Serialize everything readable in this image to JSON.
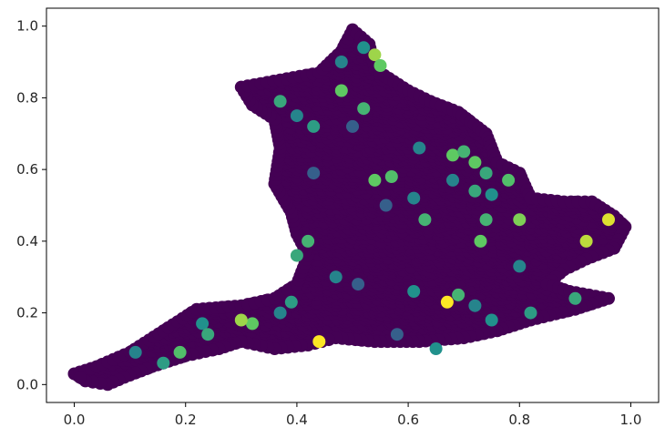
{
  "chart_data": {
    "type": "scatter",
    "title": "",
    "xlabel": "",
    "ylabel": "",
    "xlim": [
      -0.05,
      1.05
    ],
    "ylim": [
      -0.05,
      1.05
    ],
    "x_ticks": [
      "0.0",
      "0.2",
      "0.4",
      "0.6",
      "0.8",
      "1.0"
    ],
    "y_ticks": [
      "0.0",
      "0.2",
      "0.4",
      "0.6",
      "0.8",
      "1.0"
    ],
    "grid": false,
    "legend": "none",
    "colormap": "viridis",
    "base_color": "#440154",
    "accent_colors": [
      "#3b528b",
      "#21918c",
      "#5ec962",
      "#b5de2b",
      "#fde725"
    ],
    "region_outline": [
      [
        0.0,
        0.03
      ],
      [
        0.04,
        0.05
      ],
      [
        0.1,
        0.09
      ],
      [
        0.16,
        0.15
      ],
      [
        0.22,
        0.21
      ],
      [
        0.3,
        0.22
      ],
      [
        0.36,
        0.24
      ],
      [
        0.4,
        0.28
      ],
      [
        0.42,
        0.36
      ],
      [
        0.4,
        0.42
      ],
      [
        0.39,
        0.48
      ],
      [
        0.36,
        0.56
      ],
      [
        0.37,
        0.66
      ],
      [
        0.36,
        0.74
      ],
      [
        0.32,
        0.78
      ],
      [
        0.3,
        0.83
      ],
      [
        0.37,
        0.85
      ],
      [
        0.44,
        0.87
      ],
      [
        0.48,
        0.93
      ],
      [
        0.5,
        0.99
      ],
      [
        0.53,
        0.95
      ],
      [
        0.54,
        0.88
      ],
      [
        0.6,
        0.82
      ],
      [
        0.64,
        0.79
      ],
      [
        0.69,
        0.76
      ],
      [
        0.74,
        0.7
      ],
      [
        0.76,
        0.62
      ],
      [
        0.8,
        0.59
      ],
      [
        0.82,
        0.52
      ],
      [
        0.88,
        0.51
      ],
      [
        0.93,
        0.51
      ],
      [
        0.97,
        0.47
      ],
      [
        0.99,
        0.44
      ],
      [
        0.97,
        0.38
      ],
      [
        0.92,
        0.35
      ],
      [
        0.88,
        0.32
      ],
      [
        0.85,
        0.28
      ],
      [
        0.89,
        0.26
      ],
      [
        0.96,
        0.24
      ],
      [
        0.9,
        0.21
      ],
      [
        0.82,
        0.18
      ],
      [
        0.76,
        0.15
      ],
      [
        0.7,
        0.13
      ],
      [
        0.62,
        0.12
      ],
      [
        0.54,
        0.12
      ],
      [
        0.47,
        0.13
      ],
      [
        0.42,
        0.11
      ],
      [
        0.36,
        0.1
      ],
      [
        0.3,
        0.12
      ],
      [
        0.26,
        0.1
      ],
      [
        0.2,
        0.08
      ],
      [
        0.14,
        0.05
      ],
      [
        0.09,
        0.02
      ],
      [
        0.06,
        0.0
      ],
      [
        0.02,
        0.01
      ]
    ],
    "highlight_points": [
      {
        "x": 0.52,
        "y": 0.94,
        "v": 0.5
      },
      {
        "x": 0.54,
        "y": 0.92,
        "v": 0.85
      },
      {
        "x": 0.48,
        "y": 0.9,
        "v": 0.45
      },
      {
        "x": 0.55,
        "y": 0.89,
        "v": 0.75
      },
      {
        "x": 0.37,
        "y": 0.79,
        "v": 0.6
      },
      {
        "x": 0.4,
        "y": 0.75,
        "v": 0.45
      },
      {
        "x": 0.48,
        "y": 0.82,
        "v": 0.75
      },
      {
        "x": 0.52,
        "y": 0.77,
        "v": 0.65
      },
      {
        "x": 0.43,
        "y": 0.72,
        "v": 0.55
      },
      {
        "x": 0.5,
        "y": 0.72,
        "v": 0.3
      },
      {
        "x": 0.62,
        "y": 0.66,
        "v": 0.45
      },
      {
        "x": 0.68,
        "y": 0.64,
        "v": 0.75
      },
      {
        "x": 0.7,
        "y": 0.65,
        "v": 0.65
      },
      {
        "x": 0.72,
        "y": 0.62,
        "v": 0.75
      },
      {
        "x": 0.74,
        "y": 0.59,
        "v": 0.6
      },
      {
        "x": 0.68,
        "y": 0.57,
        "v": 0.45
      },
      {
        "x": 0.72,
        "y": 0.54,
        "v": 0.6
      },
      {
        "x": 0.75,
        "y": 0.53,
        "v": 0.5
      },
      {
        "x": 0.78,
        "y": 0.57,
        "v": 0.7
      },
      {
        "x": 0.8,
        "y": 0.46,
        "v": 0.8
      },
      {
        "x": 0.74,
        "y": 0.46,
        "v": 0.65
      },
      {
        "x": 0.57,
        "y": 0.58,
        "v": 0.7
      },
      {
        "x": 0.54,
        "y": 0.57,
        "v": 0.75
      },
      {
        "x": 0.61,
        "y": 0.52,
        "v": 0.45
      },
      {
        "x": 0.63,
        "y": 0.46,
        "v": 0.65
      },
      {
        "x": 0.56,
        "y": 0.5,
        "v": 0.3
      },
      {
        "x": 0.43,
        "y": 0.59,
        "v": 0.3
      },
      {
        "x": 0.8,
        "y": 0.33,
        "v": 0.45
      },
      {
        "x": 0.73,
        "y": 0.4,
        "v": 0.75
      },
      {
        "x": 0.96,
        "y": 0.46,
        "v": 0.95
      },
      {
        "x": 0.92,
        "y": 0.4,
        "v": 0.9
      },
      {
        "x": 0.9,
        "y": 0.24,
        "v": 0.6
      },
      {
        "x": 0.82,
        "y": 0.2,
        "v": 0.55
      },
      {
        "x": 0.72,
        "y": 0.22,
        "v": 0.45
      },
      {
        "x": 0.69,
        "y": 0.25,
        "v": 0.65
      },
      {
        "x": 0.61,
        "y": 0.26,
        "v": 0.5
      },
      {
        "x": 0.51,
        "y": 0.28,
        "v": 0.3
      },
      {
        "x": 0.47,
        "y": 0.3,
        "v": 0.45
      },
      {
        "x": 0.42,
        "y": 0.4,
        "v": 0.65
      },
      {
        "x": 0.4,
        "y": 0.36,
        "v": 0.6
      },
      {
        "x": 0.39,
        "y": 0.23,
        "v": 0.55
      },
      {
        "x": 0.37,
        "y": 0.2,
        "v": 0.45
      },
      {
        "x": 0.32,
        "y": 0.17,
        "v": 0.75
      },
      {
        "x": 0.3,
        "y": 0.18,
        "v": 0.85
      },
      {
        "x": 0.23,
        "y": 0.17,
        "v": 0.5
      },
      {
        "x": 0.24,
        "y": 0.14,
        "v": 0.6
      },
      {
        "x": 0.19,
        "y": 0.09,
        "v": 0.7
      },
      {
        "x": 0.16,
        "y": 0.06,
        "v": 0.55
      },
      {
        "x": 0.11,
        "y": 0.09,
        "v": 0.45
      },
      {
        "x": 0.65,
        "y": 0.1,
        "v": 0.5
      },
      {
        "x": 0.44,
        "y": 0.12,
        "v": 1.0
      },
      {
        "x": 0.67,
        "y": 0.23,
        "v": 1.0
      },
      {
        "x": 0.58,
        "y": 0.14,
        "v": 0.3
      },
      {
        "x": 0.75,
        "y": 0.18,
        "v": 0.5
      }
    ]
  }
}
